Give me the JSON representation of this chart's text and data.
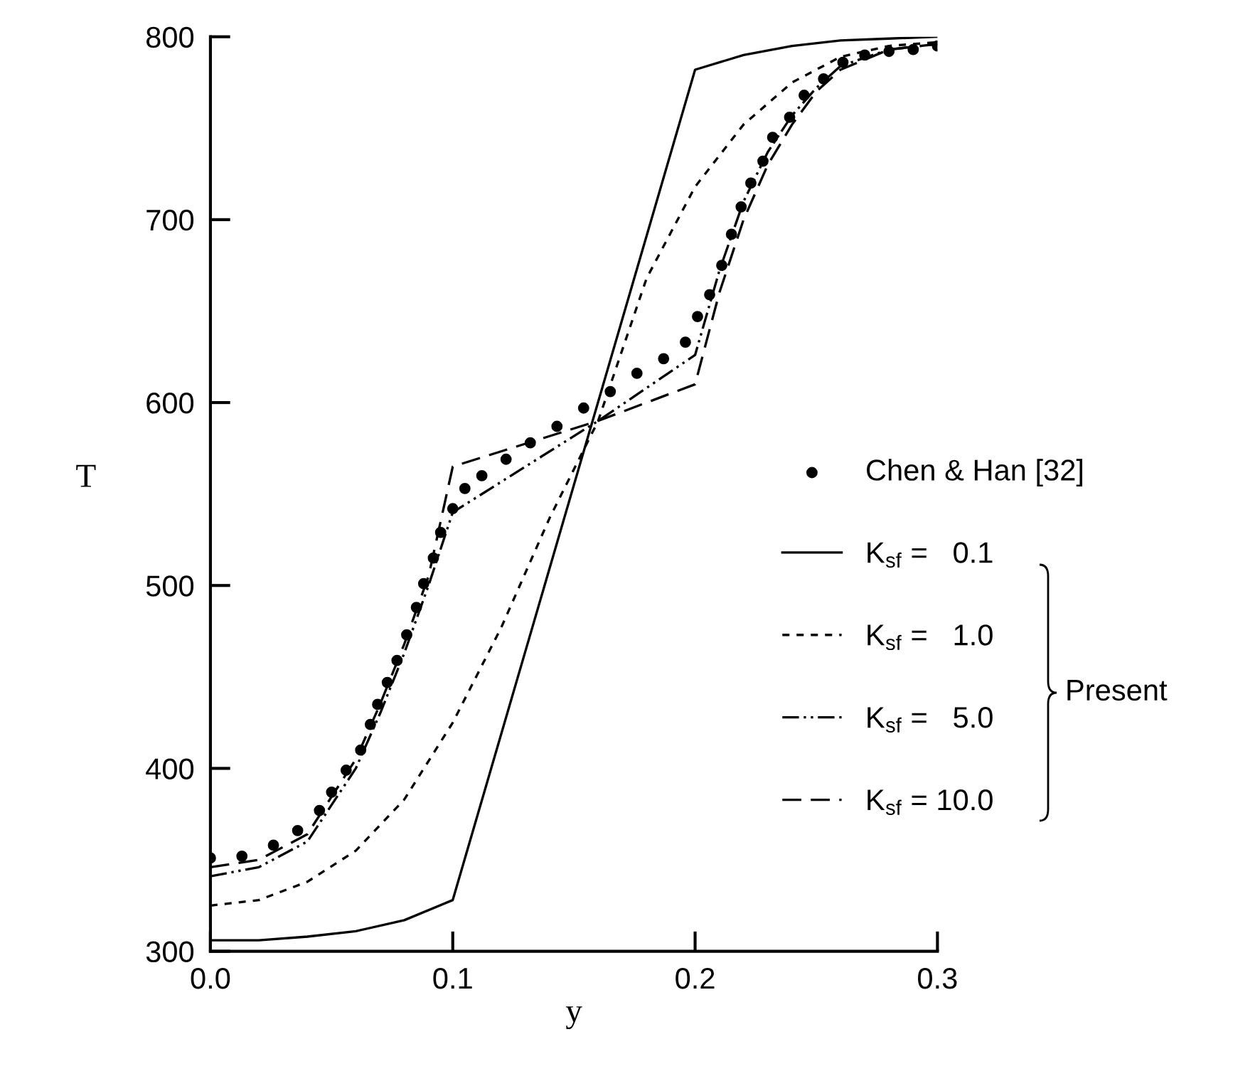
{
  "chart_data": {
    "type": "line",
    "xlabel": "y",
    "ylabel": "T",
    "xlim": [
      0,
      0.3
    ],
    "ylim": [
      300,
      800
    ],
    "xticks": [
      {
        "value": 0,
        "label": "0.0"
      },
      {
        "value": 0.1,
        "label": "0.1"
      },
      {
        "value": 0.2,
        "label": "0.2"
      },
      {
        "value": 0.3,
        "label": "0.3"
      }
    ],
    "yticks": [
      300,
      400,
      500,
      600,
      700,
      800
    ],
    "grid": false,
    "legend": "right",
    "series": [
      {
        "name": "Chen & Han [32]",
        "type": "scatter",
        "marker": "circle",
        "color": "#000000",
        "x": [
          0,
          0.013,
          0.026,
          0.036,
          0.045,
          0.05,
          0.056,
          0.062,
          0.066,
          0.069,
          0.073,
          0.077,
          0.081,
          0.085,
          0.088,
          0.092,
          0.095,
          0.1,
          0.105,
          0.112,
          0.122,
          0.132,
          0.143,
          0.154,
          0.165,
          0.176,
          0.187,
          0.196,
          0.201,
          0.206,
          0.211,
          0.215,
          0.219,
          0.223,
          0.228,
          0.232,
          0.239,
          0.245,
          0.253,
          0.261,
          0.27,
          0.28,
          0.29,
          0.3
        ],
        "values": [
          351,
          352,
          358,
          366,
          377,
          387,
          399,
          410,
          424,
          435,
          447,
          459,
          473,
          488,
          501,
          515,
          529,
          542,
          553,
          560,
          569,
          578,
          587,
          597,
          606,
          616,
          624,
          633,
          647,
          659,
          675,
          692,
          707,
          720,
          732,
          745,
          756,
          768,
          777,
          786,
          790,
          792,
          793,
          795
        ]
      },
      {
        "name": "K$_{sf}$ =   0.1",
        "type": "line",
        "line_style": "solid",
        "color": "#000000",
        "x": [
          0,
          0.02,
          0.04,
          0.06,
          0.08,
          0.1,
          0.2,
          0.22,
          0.24,
          0.26,
          0.28,
          0.3
        ],
        "values": [
          306,
          306,
          308,
          311,
          317,
          328,
          782,
          790,
          795,
          798,
          799,
          800
        ]
      },
      {
        "name": "K$_{sf}$ =   1.0",
        "type": "line",
        "line_style": "dashed",
        "color": "#000000",
        "x": [
          0,
          0.02,
          0.04,
          0.06,
          0.08,
          0.1,
          0.12,
          0.14,
          0.16,
          0.18,
          0.2,
          0.22,
          0.24,
          0.26,
          0.28,
          0.3
        ],
        "values": [
          325,
          328,
          338,
          355,
          383,
          425,
          477,
          537,
          590,
          668,
          718,
          752,
          775,
          789,
          795,
          797
        ]
      },
      {
        "name": "K$_{sf}$ =   5.0",
        "type": "line",
        "line_style": "dashdotdot",
        "color": "#000000",
        "x": [
          0,
          0.02,
          0.04,
          0.06,
          0.07,
          0.08,
          0.09,
          0.1,
          0.16,
          0.2,
          0.21,
          0.22,
          0.23,
          0.24,
          0.25,
          0.26,
          0.28,
          0.3
        ],
        "values": [
          341,
          346,
          360,
          400,
          430,
          463,
          500,
          540,
          590,
          626,
          672,
          710,
          737,
          757,
          772,
          784,
          793,
          796
        ]
      },
      {
        "name": "K$_{sf}$ = 10.0",
        "type": "line",
        "line_style": "longdash",
        "color": "#000000",
        "x": [
          0,
          0.02,
          0.04,
          0.06,
          0.07,
          0.08,
          0.09,
          0.1,
          0.16,
          0.2,
          0.21,
          0.22,
          0.23,
          0.24,
          0.25,
          0.26,
          0.28,
          0.3
        ],
        "values": [
          346,
          350,
          364,
          405,
          435,
          468,
          505,
          565,
          590,
          610,
          660,
          700,
          730,
          752,
          770,
          782,
          793,
          796
        ]
      }
    ],
    "annotations": [
      "Present"
    ]
  }
}
